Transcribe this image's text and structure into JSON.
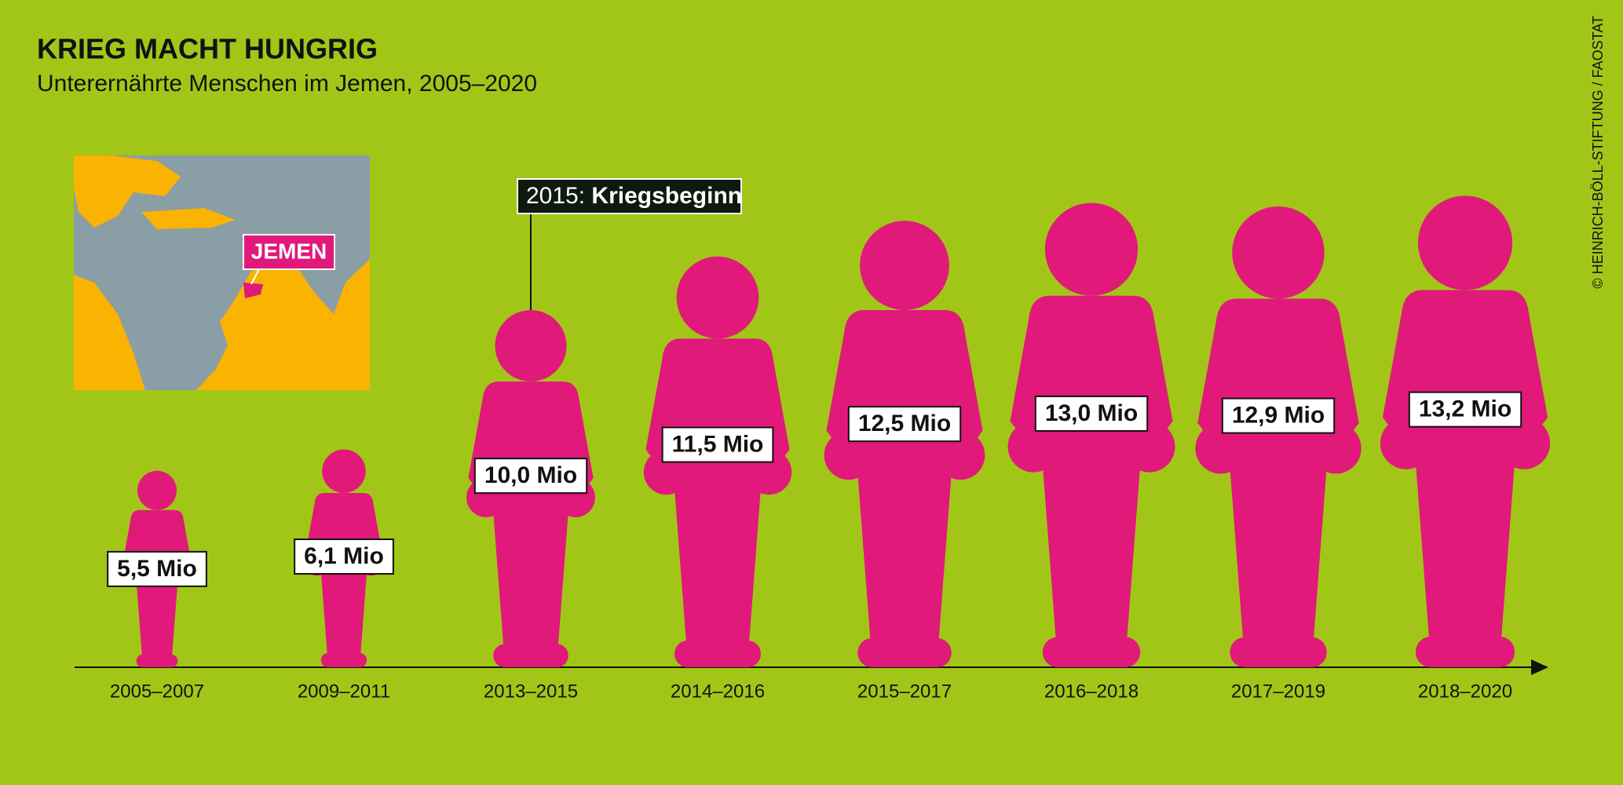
{
  "chart_data": {
    "type": "pictogram",
    "title": "KRIEG MACHT HUNGRIG",
    "subtitle": "Unterernährte Menschen im Jemen, 2005–2020",
    "source": "© HEINRICH-BÖLL-STIFTUNG / FAOSTAT",
    "categories": [
      "2005–2007",
      "2009–2011",
      "2013–2015",
      "2014–2016",
      "2015–2017",
      "2016–2018",
      "2017–2019",
      "2018–2020"
    ],
    "values": [
      5.5,
      6.1,
      10.0,
      11.5,
      12.5,
      13.0,
      12.9,
      13.2
    ],
    "value_labels": [
      "5,5 Mio",
      "6,1 Mio",
      "10,0 Mio",
      "11,5 Mio",
      "12,5 Mio",
      "13,0 Mio",
      "12,9 Mio",
      "13,2 Mio"
    ],
    "color": "#e0197a",
    "annotation": {
      "label": "2015:",
      "text": "Kriegsbeginn"
    },
    "map_label": "JEMEN"
  }
}
